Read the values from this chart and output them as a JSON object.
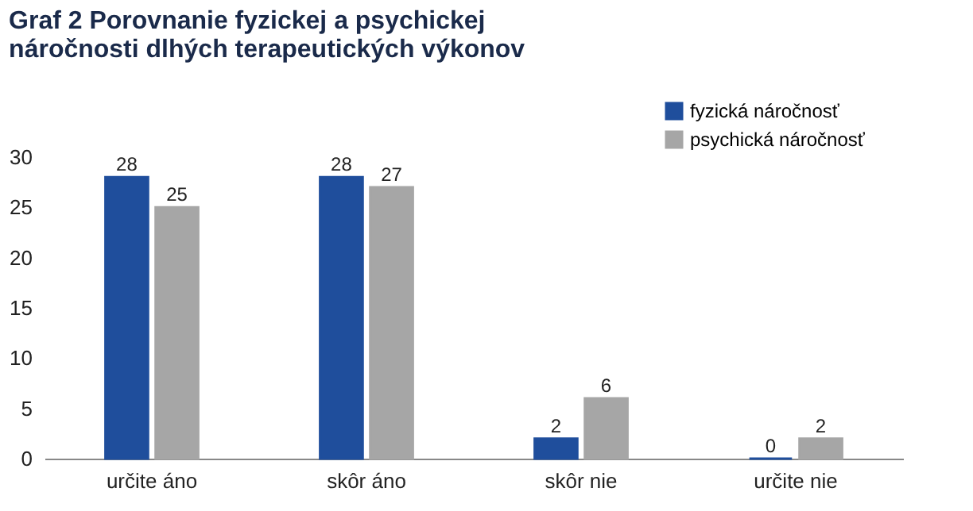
{
  "chart_data": {
    "type": "bar",
    "title": "Graf 2 Porovnanie fyzickej a psychickej náročnosti dlhých terapeutických výkonov",
    "categories": [
      "určite áno",
      "skôr áno",
      "skôr nie",
      "určite nie"
    ],
    "series": [
      {
        "name": "fyzická náročnosť",
        "color": "#1f4e9c",
        "values": [
          28,
          28,
          2,
          0
        ]
      },
      {
        "name": "psychická náročnosť",
        "color": "#a6a6a6",
        "values": [
          25,
          27,
          6,
          2
        ]
      }
    ],
    "ylim": [
      0,
      30
    ],
    "yticks": [
      0,
      5,
      10,
      15,
      20,
      25,
      30
    ],
    "grid": false,
    "legend": "top right",
    "data_labels": true
  }
}
